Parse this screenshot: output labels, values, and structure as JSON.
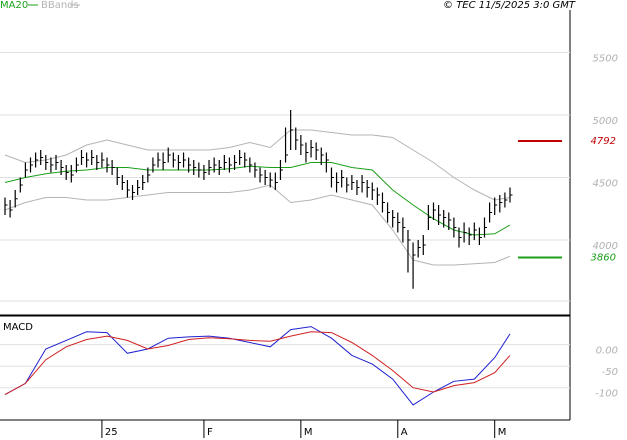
{
  "chart_data": [
    {
      "type": "ohlc",
      "source": "© TEC 11/5/2025 3:0 GMT",
      "categories": [
        null,
        null,
        null,
        null,
        null,
        null,
        null,
        null,
        null,
        null,
        null,
        null,
        null,
        null,
        null,
        null,
        null,
        null,
        null,
        "25",
        null,
        null,
        null,
        null,
        null,
        null,
        null,
        null,
        null,
        null,
        null,
        null,
        null,
        null,
        null,
        null,
        null,
        null,
        null,
        "F",
        null,
        null,
        null,
        null,
        null,
        null,
        null,
        null,
        null,
        null,
        null,
        null,
        null,
        null,
        null,
        null,
        null,
        null,
        "M",
        null,
        null,
        null,
        null,
        null,
        null,
        null,
        null,
        null,
        null,
        null,
        null,
        null,
        null,
        null,
        null,
        null,
        null,
        "A",
        null,
        null,
        null,
        null,
        null,
        null,
        null,
        null,
        null,
        null,
        null,
        null,
        null,
        null,
        null,
        null,
        null,
        null,
        "M",
        null,
        null,
        null
      ],
      "high": [
        4340,
        4320,
        4400,
        4500,
        4620,
        4660,
        4700,
        4720,
        4680,
        4660,
        4680,
        4640,
        4600,
        4600,
        4660,
        4720,
        4700,
        4720,
        4680,
        4700,
        4660,
        4640,
        4580,
        4520,
        4480,
        4440,
        4480,
        4520,
        4580,
        4660,
        4700,
        4700,
        4740,
        4700,
        4680,
        4700,
        4660,
        4640,
        4620,
        4600,
        4640,
        4660,
        4640,
        4680,
        4660,
        4680,
        4720,
        4700,
        4660,
        4620,
        4580,
        4560,
        4540,
        4540,
        4640,
        4900,
        5040,
        4900,
        4840,
        4780,
        4800,
        4780,
        4740,
        4700,
        4580,
        4540,
        4560,
        4500,
        4520,
        4480,
        4520,
        4480,
        4460,
        4420,
        4380,
        4300,
        4240,
        4220,
        4180,
        4080,
        3980,
        4000,
        4040,
        4280,
        4300,
        4280,
        4240,
        4220,
        4180,
        4100,
        4140,
        4100,
        4140,
        4100,
        4180,
        4300,
        4340,
        4360,
        4380,
        4420
      ],
      "low": [
        4200,
        4180,
        4260,
        4380,
        4500,
        4540,
        4580,
        4600,
        4560,
        4540,
        4560,
        4520,
        4480,
        4460,
        4540,
        4600,
        4580,
        4600,
        4560,
        4580,
        4540,
        4520,
        4440,
        4400,
        4340,
        4320,
        4360,
        4400,
        4460,
        4540,
        4580,
        4560,
        4620,
        4580,
        4560,
        4580,
        4540,
        4520,
        4500,
        4480,
        4520,
        4540,
        4520,
        4560,
        4540,
        4560,
        4600,
        4580,
        4540,
        4500,
        4460,
        4440,
        4420,
        4400,
        4480,
        4620,
        4720,
        4720,
        4680,
        4620,
        4660,
        4640,
        4600,
        4540,
        4420,
        4380,
        4420,
        4380,
        4400,
        4360,
        4380,
        4340,
        4320,
        4280,
        4220,
        4140,
        4100,
        4060,
        3980,
        3740,
        3610,
        3860,
        3880,
        4080,
        4160,
        4120,
        4100,
        4080,
        4020,
        3940,
        3980,
        3960,
        4000,
        3960,
        4020,
        4140,
        4200,
        4220,
        4260,
        4300
      ],
      "close": [
        4280,
        4240,
        4330,
        4440,
        4560,
        4600,
        4640,
        4660,
        4620,
        4600,
        4620,
        4580,
        4540,
        4520,
        4600,
        4660,
        4640,
        4660,
        4620,
        4640,
        4600,
        4580,
        4500,
        4460,
        4400,
        4380,
        4420,
        4460,
        4520,
        4600,
        4640,
        4620,
        4680,
        4640,
        4620,
        4640,
        4600,
        4580,
        4560,
        4540,
        4580,
        4600,
        4580,
        4620,
        4600,
        4620,
        4660,
        4640,
        4600,
        4560,
        4520,
        4500,
        4480,
        4460,
        4560,
        4680,
        4880,
        4800,
        4760,
        4700,
        4740,
        4720,
        4680,
        4640,
        4500,
        4460,
        4500,
        4440,
        4460,
        4420,
        4460,
        4420,
        4400,
        4360,
        4300,
        4220,
        4180,
        4140,
        4100,
        4000,
        3880,
        3940,
        3960,
        4180,
        4240,
        4200,
        4180,
        4160,
        4100,
        4020,
        4060,
        4040,
        4080,
        4020,
        4100,
        4220,
        4280,
        4300,
        4320,
        4360
      ],
      "bar_color": "#000000",
      "x": [
        0,
        4,
        8,
        12,
        16,
        20,
        24,
        28,
        32,
        36,
        40,
        44,
        48,
        52,
        56,
        60,
        64,
        68,
        72,
        76,
        80,
        84,
        88,
        92,
        96,
        99
      ],
      "series": [
        {
          "name": "MA20",
          "color": "#1aa01a",
          "values": [
            4460,
            4500,
            4530,
            4550,
            4560,
            4580,
            4580,
            4560,
            4560,
            4560,
            4560,
            4570,
            4590,
            4580,
            4580,
            4620,
            4620,
            4580,
            4560,
            4400,
            4280,
            4170,
            4080,
            4040,
            4050,
            4120
          ]
        },
        {
          "name": "BBands",
          "color": "#b4b4b4",
          "upper": [
            4680,
            4620,
            4640,
            4680,
            4760,
            4800,
            4760,
            4720,
            4720,
            4720,
            4720,
            4740,
            4780,
            4740,
            4880,
            4880,
            4860,
            4840,
            4840,
            4820,
            4720,
            4620,
            4500,
            4400,
            4320,
            4340
          ],
          "lower": [
            4240,
            4300,
            4340,
            4340,
            4320,
            4320,
            4340,
            4360,
            4380,
            4380,
            4380,
            4380,
            4400,
            4440,
            4300,
            4320,
            4360,
            4320,
            4280,
            4080,
            3840,
            3800,
            3800,
            3810,
            3820,
            3870
          ]
        }
      ],
      "annotations": [
        {
          "value": 4792,
          "color": "#c00000"
        },
        {
          "value": 3860,
          "color": "#1aa01a"
        }
      ],
      "ylim": [
        3416,
        5840
      ],
      "yticks": [
        4000,
        4500,
        5000,
        5500
      ],
      "grid": true
    },
    {
      "type": "line",
      "title": "MACD",
      "x": [
        0,
        4,
        8,
        12,
        16,
        20,
        24,
        28,
        32,
        36,
        40,
        44,
        48,
        52,
        56,
        60,
        64,
        68,
        72,
        76,
        80,
        84,
        88,
        92,
        96,
        99
      ],
      "series": [
        {
          "color": "#2020d0",
          "values": [
            -116,
            -90,
            -10,
            10,
            30,
            28,
            -20,
            -10,
            15,
            18,
            20,
            15,
            5,
            -5,
            35,
            42,
            15,
            -25,
            -45,
            -80,
            -140,
            -110,
            -85,
            -80,
            -30,
            25
          ]
        },
        {
          "color": "#d02020",
          "values": [
            -116,
            -90,
            -35,
            -5,
            12,
            20,
            10,
            -10,
            -2,
            12,
            16,
            14,
            10,
            8,
            20,
            30,
            28,
            5,
            -25,
            -60,
            -100,
            -110,
            -95,
            -88,
            -65,
            -25
          ]
        }
      ],
      "ylim": [
        -175,
        62
      ],
      "yticks": [
        {
          "value": 0,
          "label": "0.00"
        },
        -50,
        -100
      ],
      "grid": true
    }
  ]
}
